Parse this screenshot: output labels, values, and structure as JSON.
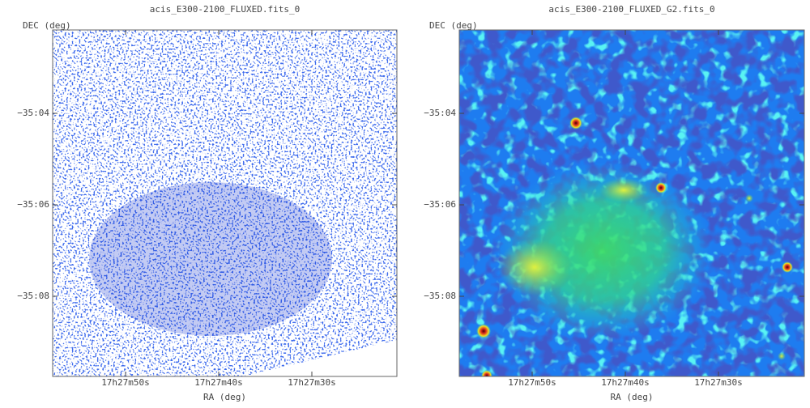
{
  "panels": [
    {
      "title": "acis_E300-2100_FLUXED.fits_0",
      "y_label": "DEC (deg)",
      "x_label": "RA (deg)",
      "y_ticks": [
        "−35:04",
        "−35:06",
        "−35:08"
      ],
      "x_ticks": [
        "17h27m50s",
        "17h27m40s",
        "17h27m30s"
      ]
    },
    {
      "title": "acis_E300-2100_FLUXED_G2.fits_0",
      "y_label": "DEC (deg)",
      "x_label": "RA (deg)",
      "y_ticks": [
        "−35:04",
        "−35:06",
        "−35:08"
      ],
      "x_ticks": [
        "17h27m50s",
        "17h27m40s",
        "17h27m30s"
      ]
    }
  ]
}
